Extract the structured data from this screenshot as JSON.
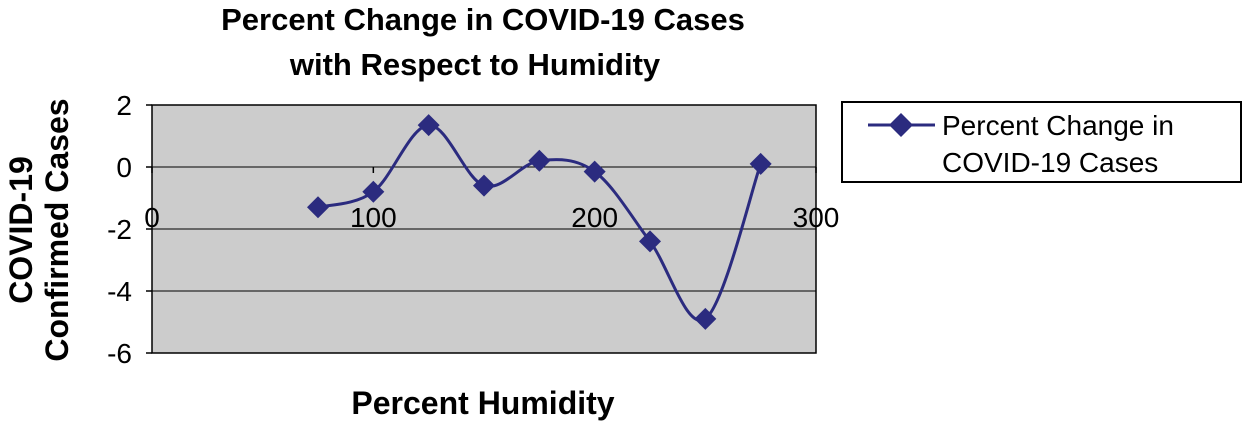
{
  "chart_data": {
    "type": "line",
    "title_lines": [
      "Percent Change in COVID-19 Cases",
      "with Respect to Humidity"
    ],
    "xlabel": "Percent Humidity",
    "ylabel_lines": [
      "COVID-19",
      "Confirmed Cases"
    ],
    "xlim": [
      0,
      300
    ],
    "ylim": [
      -6,
      2
    ],
    "x_ticks": [
      "0",
      "100",
      "200",
      "300"
    ],
    "y_ticks": [
      "2",
      "0",
      "-2",
      "-4",
      "-6"
    ],
    "grid": "horizontal",
    "legend_position": "right",
    "series": [
      {
        "name": "Percent Change in COVID-19 Cases",
        "name_lines": [
          "Percent Change in",
          "COVID-19 Cases"
        ],
        "color": "#2b2b7f",
        "marker": "diamond",
        "smooth": true,
        "x": [
          75,
          100,
          125,
          150,
          175,
          200,
          225,
          250,
          275
        ],
        "y": [
          -1.3,
          -0.8,
          1.35,
          -0.6,
          0.2,
          -0.15,
          -2.4,
          -4.9,
          0.1
        ]
      }
    ]
  },
  "colors": {
    "plot_background": "#cccccc",
    "grid": "#000000",
    "series": "#2b2b7f"
  }
}
